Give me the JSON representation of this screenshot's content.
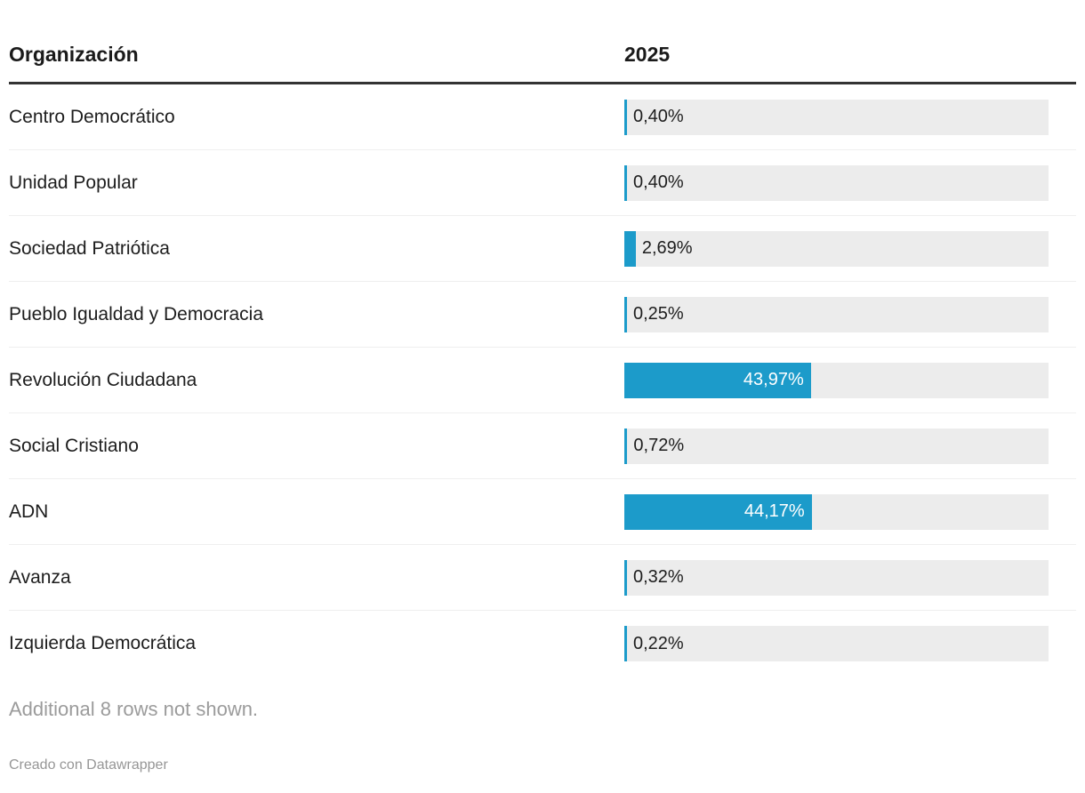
{
  "table": {
    "columns": [
      "Organización",
      "2025"
    ],
    "inside_label_threshold": 10,
    "bar_scale_max": 100,
    "rows": [
      {
        "label": "Centro Democrático",
        "value": 0.4,
        "display": "0,40%"
      },
      {
        "label": "Unidad Popular",
        "value": 0.4,
        "display": "0,40%"
      },
      {
        "label": "Sociedad Patriótica",
        "value": 2.69,
        "display": "2,69%"
      },
      {
        "label": "Pueblo Igualdad y Democracia",
        "value": 0.25,
        "display": "0,25%"
      },
      {
        "label": "Revolución Ciudadana",
        "value": 43.97,
        "display": "43,97%"
      },
      {
        "label": "Social Cristiano",
        "value": 0.72,
        "display": "0,72%"
      },
      {
        "label": "ADN",
        "value": 44.17,
        "display": "44,17%"
      },
      {
        "label": "Avanza",
        "value": 0.32,
        "display": "0,32%"
      },
      {
        "label": "Izquierda Democrática",
        "value": 0.22,
        "display": "0,22%"
      }
    ]
  },
  "footer": {
    "more_rows_note": "Additional 8 rows not shown.",
    "credit": "Creado con Datawrapper"
  },
  "colors": {
    "bar": "#1C9BCA",
    "track": "#ECECEC",
    "header_rule": "#333333",
    "row_divider": "#EFEFEF",
    "text": "#1D1D1D",
    "muted_text": "#9B9B9B",
    "bar_label_inside": "#FFFFFF"
  },
  "chart_data": {
    "type": "bar",
    "orientation": "horizontal",
    "title": "",
    "xlabel": "",
    "ylabel": "",
    "series_label": "2025",
    "categories": [
      "Centro Democrático",
      "Unidad Popular",
      "Sociedad Patriótica",
      "Pueblo Igualdad y Democracia",
      "Revolución Ciudadana",
      "Social Cristiano",
      "ADN",
      "Avanza",
      "Izquierda Democrática"
    ],
    "values": [
      0.4,
      0.4,
      2.69,
      0.25,
      43.97,
      0.72,
      44.17,
      0.32,
      0.22
    ],
    "value_labels": [
      "0,40%",
      "0,40%",
      "2,69%",
      "0,25%",
      "43,97%",
      "0,72%",
      "44,17%",
      "0,32%",
      "0,22%"
    ],
    "xlim": [
      0,
      100
    ],
    "grid": false,
    "legend": false,
    "annotations": [
      "Additional 8 rows not shown.",
      "Creado con Datawrapper"
    ]
  }
}
